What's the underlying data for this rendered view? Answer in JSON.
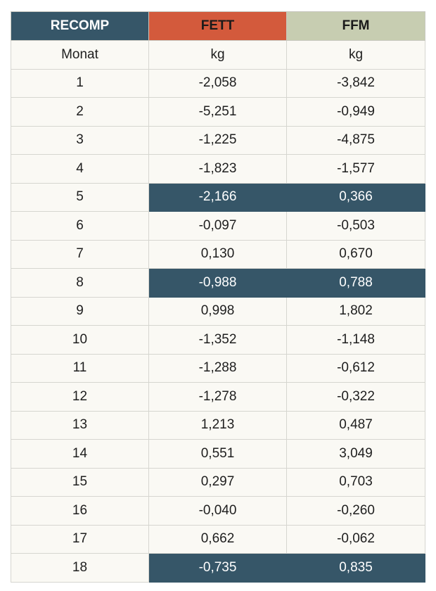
{
  "header": {
    "col1": "RECOMP",
    "col2": "FETT",
    "col3": "FFM"
  },
  "units": {
    "col1": "Monat",
    "col2": "kg",
    "col3": "kg"
  },
  "colors": {
    "header_recomp": "#365668",
    "header_fett": "#d35a3c",
    "header_ffm": "#c7cdb1",
    "highlight": "#365668",
    "cell_bg": "#faf9f4"
  },
  "rows": [
    {
      "month": "1",
      "fett": "-2,058",
      "ffm": "-3,842",
      "highlight": false
    },
    {
      "month": "2",
      "fett": "-5,251",
      "ffm": "-0,949",
      "highlight": false
    },
    {
      "month": "3",
      "fett": "-1,225",
      "ffm": "-4,875",
      "highlight": false
    },
    {
      "month": "4",
      "fett": "-1,823",
      "ffm": "-1,577",
      "highlight": false
    },
    {
      "month": "5",
      "fett": "-2,166",
      "ffm": "0,366",
      "highlight": true
    },
    {
      "month": "6",
      "fett": "-0,097",
      "ffm": "-0,503",
      "highlight": false
    },
    {
      "month": "7",
      "fett": "0,130",
      "ffm": "0,670",
      "highlight": false
    },
    {
      "month": "8",
      "fett": "-0,988",
      "ffm": "0,788",
      "highlight": true
    },
    {
      "month": "9",
      "fett": "0,998",
      "ffm": "1,802",
      "highlight": false
    },
    {
      "month": "10",
      "fett": "-1,352",
      "ffm": "-1,148",
      "highlight": false
    },
    {
      "month": "11",
      "fett": "-1,288",
      "ffm": "-0,612",
      "highlight": false
    },
    {
      "month": "12",
      "fett": "-1,278",
      "ffm": "-0,322",
      "highlight": false
    },
    {
      "month": "13",
      "fett": "1,213",
      "ffm": "0,487",
      "highlight": false
    },
    {
      "month": "14",
      "fett": "0,551",
      "ffm": "3,049",
      "highlight": false
    },
    {
      "month": "15",
      "fett": "0,297",
      "ffm": "0,703",
      "highlight": false
    },
    {
      "month": "16",
      "fett": "-0,040",
      "ffm": "-0,260",
      "highlight": false
    },
    {
      "month": "17",
      "fett": "0,662",
      "ffm": "-0,062",
      "highlight": false
    },
    {
      "month": "18",
      "fett": "-0,735",
      "ffm": "0,835",
      "highlight": true
    }
  ]
}
